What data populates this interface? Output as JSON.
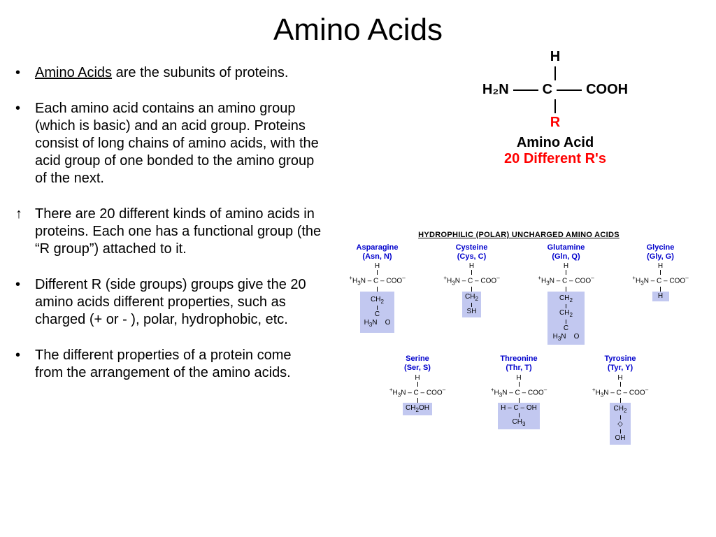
{
  "title": "Amino Acids",
  "bullets": [
    {
      "glyph": "•",
      "html": "<span class='underline'>Amino Acids</span> are the subunits of proteins."
    },
    {
      "glyph": "•",
      "html": "Each amino acid contains an amino group (which is basic) and an acid group.  Proteins consist of long chains of amino acids, with the acid group of one bonded to the amino group of the next."
    },
    {
      "glyph": "↑",
      "html": "There are 20 different kinds of amino acids in proteins.   Each one has a functional group (the “R group”) attached to it."
    },
    {
      "glyph": "•",
      "html": "Different R (side groups)  groups give the 20 amino acids different properties, such as charged (+ or - ), polar, hydrophobic, etc."
    },
    {
      "glyph": "•",
      "html": "The different properties of a protein come from the arrangement of the amino acids."
    }
  ],
  "structure": {
    "top": "H",
    "left": "H₂N",
    "center": "C",
    "right": "COOH",
    "r": "R",
    "label1": "Amino Acid",
    "label2": "20 Different R's"
  },
  "chart_title": "HYDROPHILIC (POLAR) UNCHARGED AMINO ACIDS",
  "backbone_html": "<span class='sup'>+</span>H<span class='sub'>3</span>N – C – COO<span class='sup'>–</span>",
  "row1": [
    {
      "name": "Asparagine",
      "abbr": "(Asn, N)",
      "side_html": "CH<span class='sub'>2</span><div class='mini-bond'></div>C<br>H<span class='sub'>3</span>N&nbsp;&nbsp;&nbsp;&nbsp;O",
      "pad": "6px 6px"
    },
    {
      "name": "Cysteine",
      "abbr": "(Cys, C)",
      "side_html": "CH<span class='sub'>2</span><div class='mini-bond'></div>SH",
      "pad": "2px 4px"
    },
    {
      "name": "Glutamine",
      "abbr": "(Gln, Q)",
      "side_html": "CH<span class='sub'>2</span><div class='mini-bond'></div>CH<span class='sub'>2</span><div class='mini-bond'></div>C<br>H<span class='sub'>3</span>N&nbsp;&nbsp;&nbsp;&nbsp;O",
      "pad": "4px 8px"
    },
    {
      "name": "Glycine",
      "abbr": "(Gly, G)",
      "side_html": "H",
      "pad": "1px 4px"
    }
  ],
  "row2": [
    {
      "name": "Serine",
      "abbr": "(Ser, S)",
      "side_html": "CH<span class='sub'>2</span>OH",
      "pad": "2px 4px"
    },
    {
      "name": "Threonine",
      "abbr": "(Thr, T)",
      "side_html": "H – C – OH<div class='mini-bond'></div>CH<span class='sub'>3</span>",
      "pad": "2px 4px"
    },
    {
      "name": "Tyrosine",
      "abbr": "(Tyr, Y)",
      "side_html": "CH<span class='sub'>2</span><div class='mini-bond'></div>◇<div class='mini-bond'></div>OH",
      "pad": "3px 6px"
    }
  ],
  "colors": {
    "name_color": "#0000cc",
    "sidechain_bg": "#c2c8f0",
    "r_color": "#ff0000"
  }
}
